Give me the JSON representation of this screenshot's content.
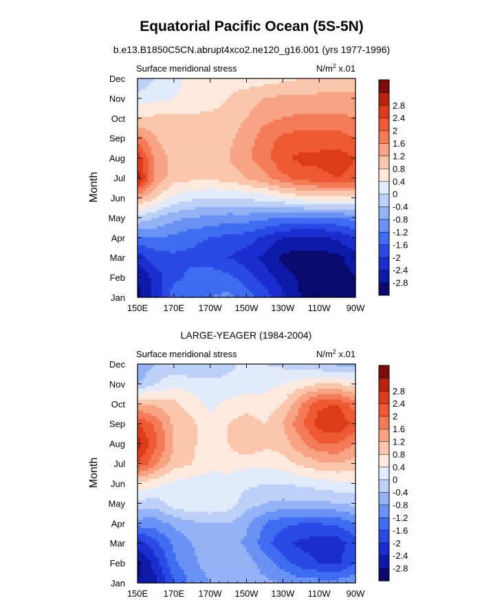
{
  "page": {
    "title": "Equatorial Pacific Ocean (5S-5N)",
    "subtitle": "b.e13.B1850C5CN.abrupt4xco2.ne120_g16.001 (yrs 1977-1996)"
  },
  "colors": {
    "levels": [
      "#0a0a6e",
      "#0d1aa8",
      "#1a2ed0",
      "#2a4ae6",
      "#3f6cf0",
      "#6a92f4",
      "#94b2f6",
      "#bdd0f8",
      "#e1ebfb",
      "#fde9dd",
      "#fbc7ac",
      "#f8a484",
      "#f47b58",
      "#ee5a34",
      "#dc3c1a",
      "#b82410",
      "#7a0c0a"
    ],
    "colorbar_labels": [
      "-2.8",
      "-2.4",
      "-2",
      "-1.6",
      "-1.2",
      "-0.8",
      "-0.4",
      "0",
      "0.4",
      "0.8",
      "1.2",
      "1.6",
      "2",
      "2.4",
      "2.8"
    ]
  },
  "chart_data": [
    {
      "type": "heatmap",
      "title": "",
      "left_label": "Surface meridional stress",
      "right_label": "N/m^2 x.01",
      "unit_base": "N/m",
      "unit_sup": "2",
      "unit_rest": " x.01",
      "xlabel": "",
      "ylabel": "Month",
      "x_ticks": [
        "150E",
        "170E",
        "170W",
        "150W",
        "130W",
        "110W",
        "90W"
      ],
      "x_values": [
        150,
        170,
        190,
        210,
        230,
        250,
        270
      ],
      "y_ticks": [
        "Jan",
        "Feb",
        "Mar",
        "Apr",
        "May",
        "Jun",
        "Jul",
        "Aug",
        "Sep",
        "Oct",
        "Nov",
        "Dec"
      ],
      "levels": [
        -2.8,
        -2.4,
        -2.0,
        -1.6,
        -1.2,
        -0.8,
        -0.4,
        0,
        0.4,
        0.8,
        1.2,
        1.6,
        2.0,
        2.4,
        2.8
      ],
      "z": [
        [
          -2.9,
          -2.3,
          -1.4,
          -1.3,
          -1.2,
          -1.1,
          -1.4,
          -1.8,
          -2.3,
          -2.8,
          -3.0,
          -3.1,
          -2.8
        ],
        [
          -2.8,
          -2.2,
          -1.7,
          -1.5,
          -1.4,
          -1.5,
          -1.8,
          -2.2,
          -2.6,
          -2.9,
          -3.0,
          -3.0,
          -2.8
        ],
        [
          -2.2,
          -1.8,
          -1.7,
          -1.7,
          -1.8,
          -2.0,
          -2.2,
          -2.5,
          -2.9,
          -3.0,
          -3.0,
          -2.9,
          -2.6
        ],
        [
          -1.3,
          -1.2,
          -1.3,
          -1.5,
          -1.6,
          -1.7,
          -1.8,
          -2.1,
          -2.4,
          -2.5,
          -2.5,
          -2.3,
          -2.0
        ],
        [
          -0.1,
          -0.4,
          -0.7,
          -0.8,
          -0.9,
          -1.0,
          -1.0,
          -1.1,
          -1.2,
          -1.3,
          -1.3,
          -1.2,
          -1.1
        ],
        [
          1.3,
          0.8,
          0.3,
          0.1,
          0.0,
          0.0,
          0.1,
          0.2,
          0.4,
          0.6,
          0.7,
          0.7,
          0.7
        ],
        [
          3.0,
          1.5,
          1.0,
          0.9,
          0.9,
          1.0,
          1.2,
          1.5,
          1.9,
          2.2,
          2.3,
          2.4,
          2.3
        ],
        [
          2.7,
          1.4,
          1.1,
          1.0,
          1.0,
          1.2,
          1.5,
          1.9,
          2.3,
          2.5,
          2.5,
          2.6,
          2.4
        ],
        [
          1.8,
          1.2,
          1.0,
          1.0,
          1.0,
          1.1,
          1.4,
          1.8,
          2.1,
          2.2,
          2.2,
          2.2,
          2.0
        ],
        [
          0.8,
          0.9,
          0.9,
          0.9,
          0.9,
          1.0,
          1.2,
          1.5,
          1.6,
          1.7,
          1.7,
          1.7,
          1.6
        ],
        [
          0.2,
          0.3,
          0.4,
          0.5,
          0.6,
          0.8,
          1.0,
          1.2,
          1.3,
          1.3,
          1.3,
          1.3,
          1.3
        ],
        [
          -0.4,
          0.0,
          0.3,
          0.5,
          0.6,
          0.6,
          0.6,
          0.6,
          0.7,
          0.8,
          0.9,
          1.0,
          1.0
        ]
      ]
    },
    {
      "type": "heatmap",
      "title": "LARGE-YEAGER (1984-2004)",
      "left_label": "Surface meridional stress",
      "right_label": "N/m^2 x.01",
      "unit_base": "N/m",
      "unit_sup": "2",
      "unit_rest": " x.01",
      "xlabel": "",
      "ylabel": "Month",
      "x_ticks": [
        "150E",
        "170E",
        "170W",
        "150W",
        "130W",
        "110W",
        "90W"
      ],
      "x_values": [
        150,
        170,
        190,
        210,
        230,
        250,
        270
      ],
      "y_ticks": [
        "Jan",
        "Feb",
        "Mar",
        "Apr",
        "May",
        "Jun",
        "Jul",
        "Aug",
        "Sep",
        "Oct",
        "Nov",
        "Dec"
      ],
      "levels": [
        -2.8,
        -2.4,
        -2.0,
        -1.6,
        -1.2,
        -0.8,
        -0.4,
        0,
        0.4,
        0.8,
        1.2,
        1.6,
        2.0,
        2.4,
        2.8
      ],
      "z": [
        [
          -2.8,
          -2.5,
          -1.6,
          -1.1,
          -0.8,
          -0.7,
          -0.6,
          -0.7,
          -0.8,
          -1.0,
          -1.0,
          -1.0,
          -0.9
        ],
        [
          -2.9,
          -2.2,
          -1.3,
          -0.9,
          -0.6,
          -0.5,
          -0.6,
          -1.0,
          -1.4,
          -1.8,
          -2.0,
          -2.1,
          -1.6
        ],
        [
          -2.2,
          -1.7,
          -1.1,
          -0.8,
          -0.6,
          -0.6,
          -0.9,
          -1.4,
          -1.9,
          -2.1,
          -2.2,
          -2.2,
          -1.8
        ],
        [
          -1.0,
          -1.0,
          -0.7,
          -0.5,
          -0.4,
          -0.4,
          -0.7,
          -1.2,
          -1.5,
          -1.6,
          -1.6,
          -1.5,
          -1.2
        ],
        [
          -0.1,
          -0.2,
          0.2,
          0.4,
          0.4,
          0.2,
          -0.2,
          -0.4,
          -0.5,
          -0.5,
          -0.5,
          -0.4,
          -0.3
        ],
        [
          0.7,
          0.5,
          0.3,
          0.2,
          0.2,
          0.2,
          0.1,
          0.0,
          0.0,
          0.1,
          0.2,
          0.3,
          0.3
        ],
        [
          2.4,
          1.7,
          1.0,
          0.8,
          0.5,
          0.6,
          0.5,
          0.5,
          0.6,
          0.9,
          1.1,
          1.2,
          1.0
        ],
        [
          3.0,
          2.1,
          1.2,
          0.9,
          0.5,
          0.8,
          1.2,
          0.9,
          1.0,
          1.5,
          2.0,
          2.0,
          1.6
        ],
        [
          2.4,
          1.9,
          1.1,
          0.9,
          0.5,
          0.8,
          1.0,
          0.8,
          1.2,
          1.9,
          2.6,
          2.8,
          2.2
        ],
        [
          1.2,
          1.1,
          0.9,
          0.6,
          0.3,
          0.5,
          0.6,
          0.5,
          0.8,
          1.6,
          2.3,
          2.4,
          1.8
        ],
        [
          -0.4,
          0.0,
          0.3,
          0.2,
          0.1,
          0.1,
          0.2,
          0.3,
          0.4,
          0.6,
          0.8,
          0.8,
          0.6
        ],
        [
          -0.8,
          -0.4,
          -0.3,
          -0.4,
          -0.3,
          -0.1,
          0.1,
          0.0,
          -0.1,
          -0.3,
          -0.4,
          -0.5,
          -0.5
        ]
      ]
    }
  ]
}
